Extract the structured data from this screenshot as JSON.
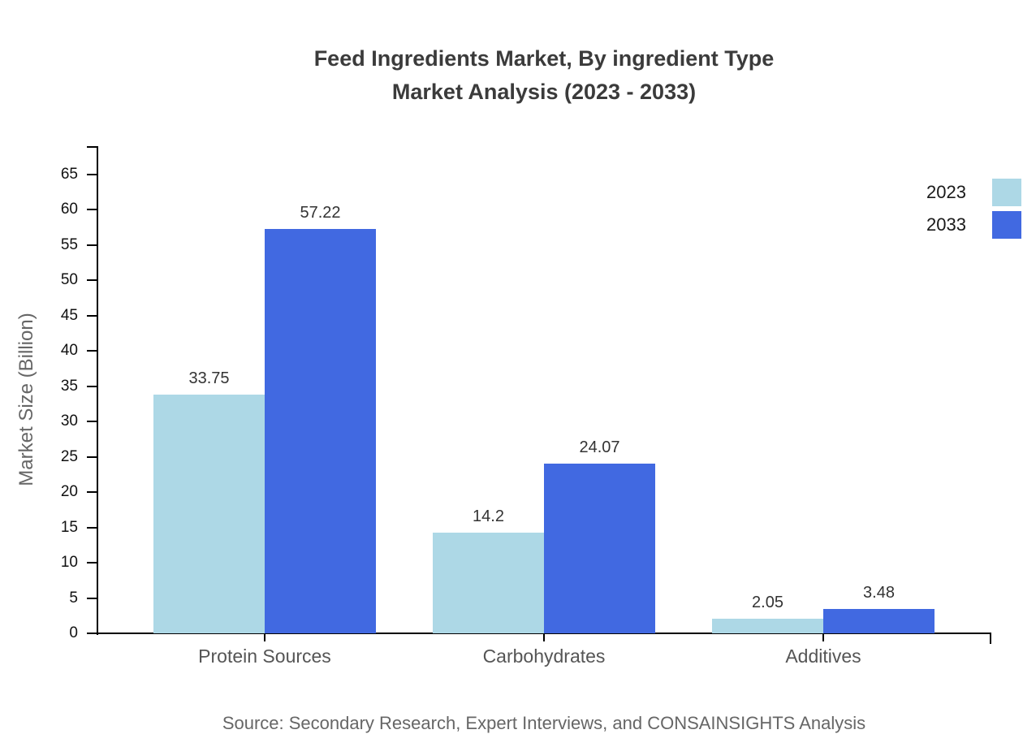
{
  "title": {
    "line1": "Feed Ingredients Market, By ingredient Type",
    "line2": "Market Analysis (2023 - 2033)"
  },
  "source_note": "Source: Secondary Research, Expert Interviews, and CONSAINSIGHTS Analysis",
  "colors": {
    "series_2023": "#add8e6",
    "series_2033": "#4169e1",
    "axis": "#000000",
    "title_text": "#3b3b3b",
    "muted_text": "#666666"
  },
  "chart_data": {
    "type": "bar",
    "title": "Feed Ingredients Market, By ingredient Type Market Analysis (2023 - 2033)",
    "xlabel": "",
    "ylabel": "Market Size (Billion)",
    "categories": [
      "Protein Sources",
      "Carbohydrates",
      "Additives"
    ],
    "series": [
      {
        "name": "2023",
        "color": "#add8e6",
        "values": [
          33.75,
          14.2,
          2.05
        ]
      },
      {
        "name": "2033",
        "color": "#4169e1",
        "values": [
          57.22,
          24.07,
          3.48
        ]
      }
    ],
    "data_labels": [
      [
        "33.75",
        "14.2",
        "2.05"
      ],
      [
        "57.22",
        "24.07",
        "3.48"
      ]
    ],
    "ylim": [
      0,
      65
    ],
    "ytick_step": 5,
    "ytick_labels": [
      "0",
      "5",
      "10",
      "15",
      "20",
      "25",
      "30",
      "35",
      "40",
      "45",
      "50",
      "55",
      "60",
      "65"
    ],
    "grid": false,
    "legend_position": "top-right"
  }
}
